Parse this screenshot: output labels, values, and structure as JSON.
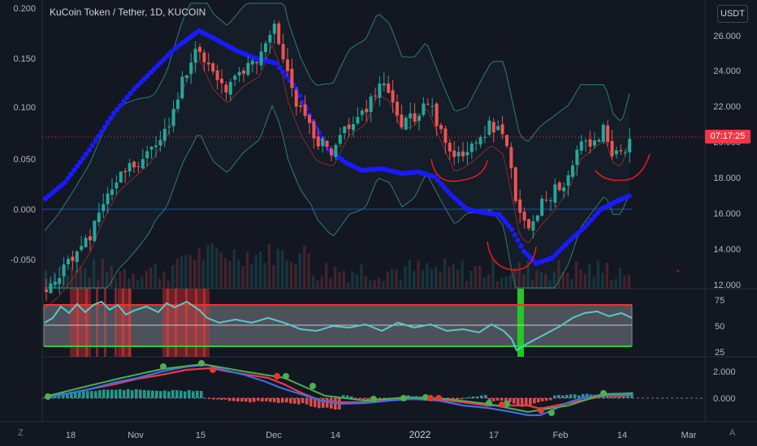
{
  "header": {
    "symbol_title": "KuCoin Token / Tether, 1D, KUCOIN",
    "currency": "USDT",
    "price_badge": "07:17:25",
    "corner_left": "Z",
    "corner_right": "A"
  },
  "colors": {
    "background": "#131722",
    "up": "#26a69a",
    "down": "#ef5350",
    "ma_blue": "#1a1aff",
    "bb": "#2e7f73",
    "rsi_line": "#59c9c9",
    "rsi_upper": "#ff2a2a",
    "rsi_lower": "#2bd12b",
    "macd_line": "#3a6ee8",
    "signal_line": "#f23645",
    "annot_green": "#4caf50",
    "price_badge": "#f23645"
  },
  "chart_data": [
    {
      "type": "line",
      "panel": "main",
      "title": "KuCoin Token / Tether, 1D, KUCOIN",
      "left_axis_ticks": [
        "0.200",
        "0.150",
        "0.100",
        "0.050",
        "0.000",
        "-0.050"
      ],
      "right_axis_ticks": [
        "26.000",
        "24.000",
        "22.000",
        "20.000",
        "18.000",
        "16.000",
        "14.000",
        "12.000"
      ],
      "x_tick_labels": [
        "18",
        "Nov",
        "15",
        "Dec",
        "14",
        "2022",
        "17",
        "Feb",
        "14",
        "Mar"
      ],
      "series": [
        {
          "style": "candles",
          "description": "daily OHLC candles (approximate shape)"
        },
        {
          "style": "dotted blue moving average"
        },
        {
          "style": "bollinger upper band"
        },
        {
          "style": "bollinger lower band"
        },
        {
          "style": "basis line"
        }
      ],
      "annotations": [
        "red arc under Jan 2022 lows",
        "red arc under late-Jan low",
        "red arc under Feb pullback"
      ]
    },
    {
      "type": "line",
      "panel": "rsi",
      "y_ticks": [
        "75",
        "50",
        "25"
      ],
      "upper_band": 75,
      "lower_band": 25,
      "mid_band": 50
    },
    {
      "type": "bar",
      "panel": "macd",
      "y_ticks": [
        "2.000",
        "0.000"
      ],
      "series": [
        {
          "style": "histogram"
        },
        {
          "style": "macd line"
        },
        {
          "style": "signal line"
        }
      ]
    }
  ]
}
